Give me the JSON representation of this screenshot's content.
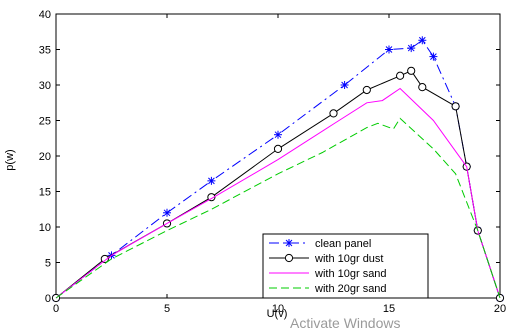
{
  "chart_data": {
    "type": "line",
    "xlabel": "U(v)",
    "ylabel": "p(w)",
    "xlim": [
      0,
      20
    ],
    "ylim": [
      0,
      40
    ],
    "xticks": [
      0,
      5,
      10,
      15,
      20
    ],
    "yticks": [
      0,
      5,
      10,
      15,
      20,
      25,
      30,
      35,
      40
    ],
    "grid": false,
    "legend_position": "bottom-right",
    "series": [
      {
        "name": "clean panel",
        "color": "#0000ff",
        "dash": "dashdot",
        "marker": "asterisk",
        "x": [
          0,
          2.5,
          5,
          7,
          10,
          13,
          15,
          16,
          16.5,
          17,
          18,
          18.5,
          19,
          20
        ],
        "y": [
          0,
          6,
          12,
          16.5,
          23,
          30,
          35,
          35.2,
          36.3,
          34,
          27,
          18.5,
          9.5,
          0
        ]
      },
      {
        "name": "with 10gr dust",
        "color": "#000000",
        "dash": "solid",
        "marker": "circle",
        "x": [
          0,
          2.2,
          5,
          7,
          10,
          12.5,
          14,
          15.5,
          16,
          16.5,
          18,
          18.5,
          19,
          20
        ],
        "y": [
          0,
          5.5,
          10.5,
          14.2,
          21,
          26,
          29.3,
          31.3,
          32,
          29.7,
          27,
          18.5,
          9.5,
          0
        ]
      },
      {
        "name": "with 10gr sand",
        "color": "#ff00ff",
        "dash": "solid",
        "marker": "none",
        "x": [
          0,
          2.5,
          5,
          7,
          10,
          12.5,
          14,
          14.7,
          15.5,
          17,
          18.5,
          19,
          20
        ],
        "y": [
          0,
          6,
          10.5,
          14,
          19.5,
          24.5,
          27.5,
          27.8,
          29.5,
          25,
          18.5,
          9.5,
          0
        ]
      },
      {
        "name": "with 20gr sand",
        "color": "#00cc00",
        "dash": "dashed",
        "marker": "none",
        "x": [
          0,
          2.5,
          5,
          7,
          10,
          12,
          14,
          14.5,
          15.2,
          15.5,
          17,
          18,
          19,
          20
        ],
        "y": [
          0,
          5.5,
          9.5,
          12.5,
          17.5,
          20.5,
          24,
          24.6,
          23.8,
          25.3,
          21,
          17.5,
          9.5,
          0
        ]
      }
    ]
  },
  "watermark_text": "Activate Windows"
}
